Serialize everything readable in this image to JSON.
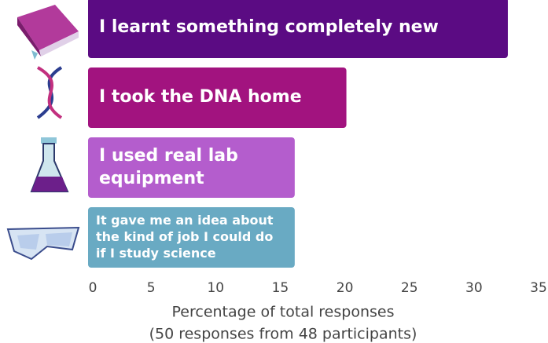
{
  "chart_data": {
    "type": "bar",
    "orientation": "horizontal",
    "categories": [
      "I learnt something completely new",
      "I took the DNA home",
      "I used real lab equipment",
      "It gave me an idea about the kind of job I could do if I study science"
    ],
    "values": [
      32.5,
      20,
      16,
      16
    ],
    "colors": [
      "#5b0b83",
      "#a2137f",
      "#b45dcd",
      "#69aac3"
    ],
    "xlim": [
      0,
      35
    ],
    "xticks": [
      0,
      5,
      10,
      15,
      20,
      25,
      30,
      35
    ],
    "xlabel": "Percentage of total responses",
    "xlabel_note": "(50 responses from 48 participants)"
  }
}
